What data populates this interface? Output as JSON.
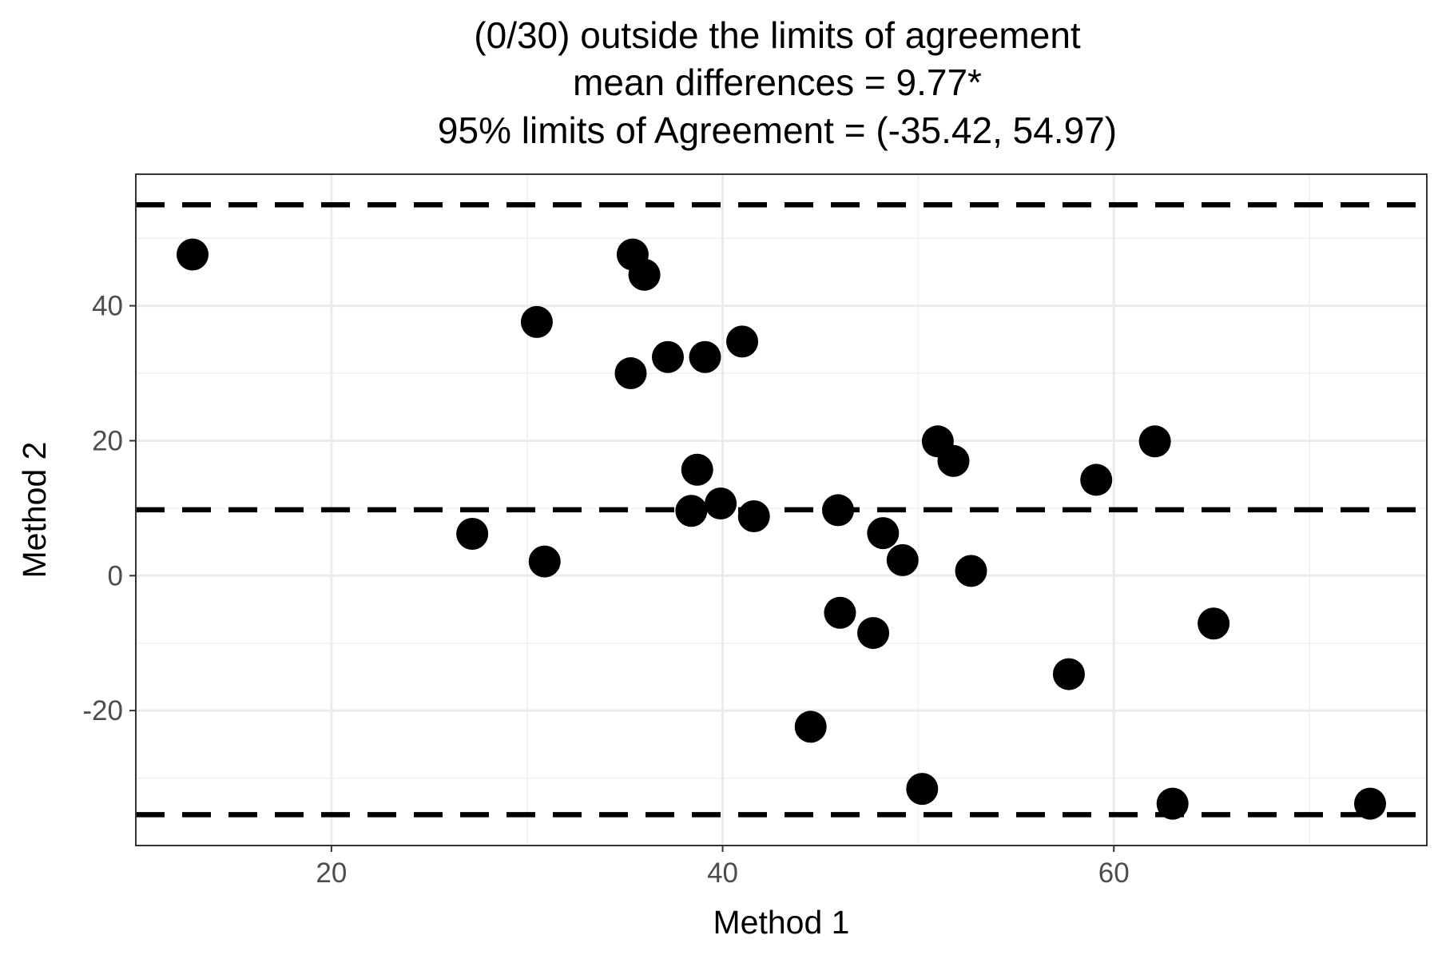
{
  "chart_data": {
    "type": "scatter",
    "title_lines": [
      "(0/30) outside the limits of agreement",
      "mean differences = 9.77*",
      "95% limits of Agreement = (-35.42, 54.97)"
    ],
    "xlabel": "Method 1",
    "ylabel": "Method 2",
    "xlim": [
      10,
      76
    ],
    "ylim": [
      -40,
      59.5
    ],
    "x_ticks": [
      20,
      40,
      60
    ],
    "x_tick_labels": [
      "20",
      "40",
      "60"
    ],
    "y_ticks": [
      -20,
      0,
      20,
      40
    ],
    "y_tick_labels": [
      "-20",
      "0",
      "20",
      "40"
    ],
    "x_minor_grid": [
      10,
      30,
      50,
      70
    ],
    "y_minor_grid": [
      -30,
      -10,
      10,
      30,
      50
    ],
    "grid": true,
    "reference_lines": [
      {
        "name": "mean difference",
        "y": 9.77,
        "style": "dashed"
      },
      {
        "name": "upper limit of agreement",
        "y": 54.97,
        "style": "dashed"
      },
      {
        "name": "lower limit of agreement",
        "y": -35.42,
        "style": "dashed"
      }
    ],
    "point_color": "#000000",
    "points": [
      {
        "x": 12.9,
        "y": 47.6
      },
      {
        "x": 35.4,
        "y": 47.6
      },
      {
        "x": 36.0,
        "y": 44.6
      },
      {
        "x": 30.5,
        "y": 37.6
      },
      {
        "x": 41.0,
        "y": 34.7
      },
      {
        "x": 37.2,
        "y": 32.4
      },
      {
        "x": 39.1,
        "y": 32.4
      },
      {
        "x": 35.3,
        "y": 30.0
      },
      {
        "x": 38.7,
        "y": 15.7
      },
      {
        "x": 39.9,
        "y": 10.7
      },
      {
        "x": 38.4,
        "y": 9.6
      },
      {
        "x": 41.6,
        "y": 8.8
      },
      {
        "x": 45.9,
        "y": 9.7
      },
      {
        "x": 51.0,
        "y": 19.9
      },
      {
        "x": 51.8,
        "y": 17.0
      },
      {
        "x": 59.1,
        "y": 14.2
      },
      {
        "x": 62.1,
        "y": 19.9
      },
      {
        "x": 27.2,
        "y": 6.2
      },
      {
        "x": 30.9,
        "y": 2.1
      },
      {
        "x": 48.2,
        "y": 6.3
      },
      {
        "x": 49.2,
        "y": 2.3
      },
      {
        "x": 52.7,
        "y": 0.7
      },
      {
        "x": 46.0,
        "y": -5.5
      },
      {
        "x": 47.7,
        "y": -8.5
      },
      {
        "x": 65.1,
        "y": -7.1
      },
      {
        "x": 57.7,
        "y": -14.6
      },
      {
        "x": 44.5,
        "y": -22.4
      },
      {
        "x": 50.2,
        "y": -31.6
      },
      {
        "x": 63.0,
        "y": -33.8
      },
      {
        "x": 73.1,
        "y": -33.8
      }
    ]
  }
}
